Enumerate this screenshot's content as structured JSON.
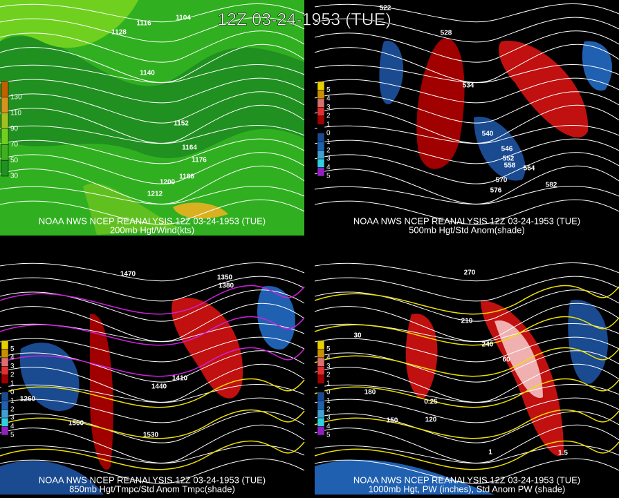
{
  "title": "12Z 03-24-1953 (TUE)",
  "panels": [
    {
      "caption": "NOAA NWS NCEP REANALYSIS 12Z 03-24-1953 (TUE)",
      "field": "200mb Hgt/Wind(kts)",
      "legend": [
        "130",
        "110",
        "90",
        "70",
        "50",
        "30"
      ],
      "contour_labels": [
        "1104",
        "1116",
        "1128",
        "1140",
        "1152",
        "1164",
        "1176",
        "1188",
        "1200",
        "1212"
      ]
    },
    {
      "caption": "NOAA NWS NCEP REANALYSIS 12Z 03-24-1953 (TUE)",
      "field": "500mb Hgt/Std Anom(shade)",
      "legend": [
        "5",
        "4",
        "3",
        "2",
        "1",
        "0",
        "1",
        "2",
        "3",
        "4",
        "5"
      ],
      "contour_labels": [
        "522",
        "528",
        "534",
        "540",
        "546",
        "552",
        "558",
        "564",
        "570",
        "576",
        "582"
      ]
    },
    {
      "caption": "NOAA NWS NCEP REANALYSIS 12Z 03-24-1953 (TUE)",
      "field": "850mb Hgt/Tmpc/Std Anom Tmpc(shade)",
      "legend": [
        "5",
        "4",
        "3",
        "2",
        "1",
        "0",
        "1",
        "2",
        "3",
        "4",
        "5"
      ],
      "contour_labels": [
        "1350",
        "1380",
        "1470",
        "1410",
        "1440",
        "1500",
        "1530",
        "1260"
      ]
    },
    {
      "caption": "NOAA NWS NCEP REANALYSIS 12Z 03-24-1953 (TUE)",
      "field": "1000mb Hgt, PW (inches), Std Anom PW (shade)",
      "legend": [
        "5",
        "4",
        "3",
        "2",
        "1",
        "0",
        "1",
        "2",
        "3",
        "4",
        "5"
      ],
      "contour_labels": [
        "270",
        "210",
        "180",
        "150",
        "120",
        "240",
        "60",
        "30",
        "0.25",
        "1",
        "1.5"
      ]
    }
  ]
}
